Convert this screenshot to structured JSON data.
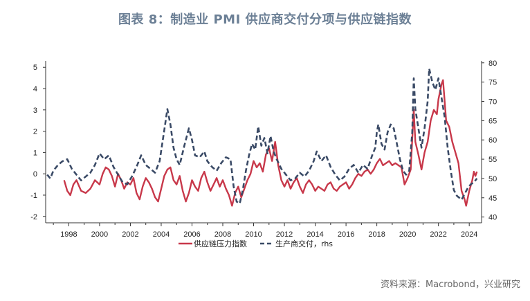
{
  "title": "图表 8：制造业 PMI 供应商交付分项与供应链指数",
  "source": "资料来源：Macrobond，兴业研究",
  "chart_data": {
    "type": "line",
    "title": "图表 8：制造业 PMI 供应商交付分项与供应链指数",
    "xlim": [
      1996.5,
      2024.8
    ],
    "x_ticks": [
      1998,
      2000,
      2002,
      2004,
      2006,
      2008,
      2010,
      2012,
      2014,
      2016,
      2018,
      2020,
      2022,
      2024
    ],
    "y_left": {
      "range": [
        -2.3,
        5.3
      ],
      "ticks": [
        -2,
        -1,
        0,
        1,
        2,
        3,
        4,
        5
      ]
    },
    "y_right": {
      "range": [
        38.5,
        80.5
      ],
      "ticks": [
        40,
        45,
        50,
        55,
        60,
        65,
        70,
        75,
        80
      ]
    },
    "legend_position": "bottom-center",
    "grid": false,
    "series": [
      {
        "name": "供应链压力指数",
        "axis": "left",
        "color": "#c8384a",
        "style": "solid",
        "points": [
          [
            1997.7,
            -0.3
          ],
          [
            1997.9,
            -0.8
          ],
          [
            1998.1,
            -1.0
          ],
          [
            1998.3,
            -0.5
          ],
          [
            1998.5,
            -0.3
          ],
          [
            1998.8,
            -0.8
          ],
          [
            1999.1,
            -0.9
          ],
          [
            1999.4,
            -0.7
          ],
          [
            1999.7,
            -0.3
          ],
          [
            2000.0,
            -0.5
          ],
          [
            2000.2,
            0.0
          ],
          [
            2000.4,
            0.3
          ],
          [
            2000.6,
            0.2
          ],
          [
            2000.8,
            -0.1
          ],
          [
            2001.0,
            -0.6
          ],
          [
            2001.2,
            0.0
          ],
          [
            2001.4,
            -0.3
          ],
          [
            2001.6,
            -0.7
          ],
          [
            2001.8,
            -0.4
          ],
          [
            2002.0,
            -0.5
          ],
          [
            2002.2,
            -0.2
          ],
          [
            2002.4,
            -0.9
          ],
          [
            2002.6,
            -1.2
          ],
          [
            2002.8,
            -0.6
          ],
          [
            2003.0,
            -0.2
          ],
          [
            2003.2,
            -0.4
          ],
          [
            2003.4,
            -0.7
          ],
          [
            2003.6,
            -1.1
          ],
          [
            2003.8,
            -1.3
          ],
          [
            2004.0,
            -0.7
          ],
          [
            2004.2,
            -0.1
          ],
          [
            2004.4,
            0.2
          ],
          [
            2004.6,
            0.3
          ],
          [
            2004.8,
            -0.3
          ],
          [
            2005.0,
            -0.5
          ],
          [
            2005.2,
            -0.1
          ],
          [
            2005.4,
            -0.8
          ],
          [
            2005.6,
            -1.3
          ],
          [
            2005.8,
            -0.9
          ],
          [
            2006.0,
            -0.3
          ],
          [
            2006.2,
            -0.6
          ],
          [
            2006.4,
            -0.8
          ],
          [
            2006.6,
            -0.2
          ],
          [
            2006.8,
            0.1
          ],
          [
            2007.0,
            -0.4
          ],
          [
            2007.2,
            -0.8
          ],
          [
            2007.4,
            -0.5
          ],
          [
            2007.6,
            -0.2
          ],
          [
            2007.8,
            -0.6
          ],
          [
            2008.0,
            -0.3
          ],
          [
            2008.2,
            -0.7
          ],
          [
            2008.4,
            -1.0
          ],
          [
            2008.6,
            -1.5
          ],
          [
            2008.8,
            -0.9
          ],
          [
            2009.0,
            -0.6
          ],
          [
            2009.2,
            -1.1
          ],
          [
            2009.4,
            -0.7
          ],
          [
            2009.6,
            -0.3
          ],
          [
            2009.8,
            0.0
          ],
          [
            2010.0,
            0.6
          ],
          [
            2010.2,
            0.3
          ],
          [
            2010.4,
            0.5
          ],
          [
            2010.6,
            0.1
          ],
          [
            2010.8,
            0.9
          ],
          [
            2011.0,
            1.2
          ],
          [
            2011.2,
            0.6
          ],
          [
            2011.4,
            1.5
          ],
          [
            2011.6,
            0.4
          ],
          [
            2011.8,
            -0.3
          ],
          [
            2012.0,
            -0.6
          ],
          [
            2012.2,
            -0.3
          ],
          [
            2012.4,
            -0.7
          ],
          [
            2012.6,
            -0.4
          ],
          [
            2012.8,
            -0.2
          ],
          [
            2013.0,
            -0.6
          ],
          [
            2013.2,
            -0.9
          ],
          [
            2013.4,
            -0.5
          ],
          [
            2013.6,
            -0.3
          ],
          [
            2013.8,
            -0.5
          ],
          [
            2014.0,
            -0.8
          ],
          [
            2014.2,
            -0.6
          ],
          [
            2014.4,
            -0.7
          ],
          [
            2014.6,
            -0.8
          ],
          [
            2014.8,
            -0.5
          ],
          [
            2015.0,
            -0.4
          ],
          [
            2015.2,
            -0.7
          ],
          [
            2015.4,
            -0.8
          ],
          [
            2015.6,
            -0.6
          ],
          [
            2015.8,
            -0.5
          ],
          [
            2016.0,
            -0.4
          ],
          [
            2016.2,
            -0.7
          ],
          [
            2016.4,
            -0.5
          ],
          [
            2016.6,
            -0.2
          ],
          [
            2016.8,
            0.0
          ],
          [
            2017.0,
            -0.1
          ],
          [
            2017.2,
            0.1
          ],
          [
            2017.4,
            0.2
          ],
          [
            2017.6,
            0.0
          ],
          [
            2017.8,
            0.2
          ],
          [
            2018.0,
            0.5
          ],
          [
            2018.2,
            0.7
          ],
          [
            2018.4,
            0.4
          ],
          [
            2018.6,
            0.5
          ],
          [
            2018.8,
            0.6
          ],
          [
            2019.0,
            0.4
          ],
          [
            2019.2,
            0.5
          ],
          [
            2019.4,
            0.4
          ],
          [
            2019.6,
            0.3
          ],
          [
            2019.8,
            -0.5
          ],
          [
            2020.0,
            -0.2
          ],
          [
            2020.2,
            0.2
          ],
          [
            2020.4,
            3.0
          ],
          [
            2020.5,
            1.5
          ],
          [
            2020.7,
            0.9
          ],
          [
            2020.9,
            0.2
          ],
          [
            2021.1,
            1.0
          ],
          [
            2021.3,
            1.5
          ],
          [
            2021.5,
            2.5
          ],
          [
            2021.7,
            3.0
          ],
          [
            2021.9,
            2.8
          ],
          [
            2022.0,
            3.5
          ],
          [
            2022.2,
            4.2
          ],
          [
            2022.3,
            4.4
          ],
          [
            2022.5,
            2.5
          ],
          [
            2022.7,
            2.2
          ],
          [
            2022.9,
            1.5
          ],
          [
            2023.1,
            1.0
          ],
          [
            2023.3,
            0.5
          ],
          [
            2023.5,
            -0.8
          ],
          [
            2023.7,
            -1.2
          ],
          [
            2023.8,
            -1.5
          ],
          [
            2024.0,
            -0.8
          ],
          [
            2024.2,
            -0.3
          ],
          [
            2024.3,
            0.1
          ],
          [
            2024.4,
            -0.1
          ],
          [
            2024.5,
            0.1
          ]
        ]
      },
      {
        "name": "生产商交付，rhs",
        "axis": "right",
        "color": "#3a4a66",
        "style": "dashed",
        "points": [
          [
            1996.6,
            51.0
          ],
          [
            1996.8,
            50.0
          ],
          [
            1997.0,
            52.0
          ],
          [
            1997.3,
            53.5
          ],
          [
            1997.6,
            54.5
          ],
          [
            1997.9,
            55.0
          ],
          [
            1998.2,
            52.5
          ],
          [
            1998.5,
            51.0
          ],
          [
            1998.8,
            49.5
          ],
          [
            1999.1,
            50.5
          ],
          [
            1999.4,
            51.5
          ],
          [
            1999.7,
            53.5
          ],
          [
            2000.0,
            56.5
          ],
          [
            2000.3,
            55.0
          ],
          [
            2000.6,
            56.0
          ],
          [
            2000.9,
            53.0
          ],
          [
            2001.2,
            51.0
          ],
          [
            2001.5,
            49.0
          ],
          [
            2001.8,
            48.5
          ],
          [
            2002.1,
            50.5
          ],
          [
            2002.4,
            53.0
          ],
          [
            2002.7,
            56.0
          ],
          [
            2003.0,
            53.5
          ],
          [
            2003.3,
            52.5
          ],
          [
            2003.6,
            51.5
          ],
          [
            2003.9,
            54.5
          ],
          [
            2004.2,
            62.5
          ],
          [
            2004.4,
            68.0
          ],
          [
            2004.6,
            64.0
          ],
          [
            2004.8,
            58.0
          ],
          [
            2005.0,
            55.0
          ],
          [
            2005.2,
            53.5
          ],
          [
            2005.5,
            58.5
          ],
          [
            2005.8,
            63.0
          ],
          [
            2006.0,
            60.0
          ],
          [
            2006.2,
            56.0
          ],
          [
            2006.5,
            55.5
          ],
          [
            2006.8,
            57.0
          ],
          [
            2007.0,
            54.5
          ],
          [
            2007.3,
            53.0
          ],
          [
            2007.6,
            52.0
          ],
          [
            2007.9,
            54.0
          ],
          [
            2008.2,
            55.5
          ],
          [
            2008.5,
            55.0
          ],
          [
            2008.7,
            48.0
          ],
          [
            2008.9,
            44.0
          ],
          [
            2009.1,
            43.5
          ],
          [
            2009.3,
            47.0
          ],
          [
            2009.5,
            52.0
          ],
          [
            2009.7,
            56.0
          ],
          [
            2009.9,
            59.0
          ],
          [
            2010.1,
            57.5
          ],
          [
            2010.3,
            63.5
          ],
          [
            2010.5,
            58.5
          ],
          [
            2010.7,
            60.5
          ],
          [
            2010.9,
            56.5
          ],
          [
            2011.1,
            61.0
          ],
          [
            2011.3,
            57.0
          ],
          [
            2011.5,
            55.0
          ],
          [
            2011.8,
            52.5
          ],
          [
            2012.1,
            51.0
          ],
          [
            2012.4,
            49.5
          ],
          [
            2012.7,
            50.0
          ],
          [
            2013.0,
            51.5
          ],
          [
            2013.3,
            50.5
          ],
          [
            2013.6,
            52.0
          ],
          [
            2013.9,
            54.5
          ],
          [
            2014.1,
            57.0
          ],
          [
            2014.4,
            54.5
          ],
          [
            2014.7,
            56.0
          ],
          [
            2015.0,
            53.0
          ],
          [
            2015.3,
            51.0
          ],
          [
            2015.6,
            49.5
          ],
          [
            2015.9,
            50.5
          ],
          [
            2016.2,
            52.5
          ],
          [
            2016.5,
            53.5
          ],
          [
            2016.8,
            51.5
          ],
          [
            2017.1,
            53.5
          ],
          [
            2017.4,
            52.5
          ],
          [
            2017.7,
            56.0
          ],
          [
            2017.9,
            58.0
          ],
          [
            2018.0,
            62.0
          ],
          [
            2018.1,
            64.0
          ],
          [
            2018.3,
            59.0
          ],
          [
            2018.5,
            57.5
          ],
          [
            2018.7,
            62.0
          ],
          [
            2018.9,
            64.0
          ],
          [
            2019.1,
            63.0
          ],
          [
            2019.3,
            59.0
          ],
          [
            2019.5,
            55.0
          ],
          [
            2019.7,
            52.0
          ],
          [
            2019.9,
            51.0
          ],
          [
            2020.1,
            52.0
          ],
          [
            2020.3,
            62.0
          ],
          [
            2020.4,
            76.0
          ],
          [
            2020.5,
            68.0
          ],
          [
            2020.7,
            63.0
          ],
          [
            2020.9,
            58.0
          ],
          [
            2021.1,
            63.0
          ],
          [
            2021.3,
            70.0
          ],
          [
            2021.4,
            78.5
          ],
          [
            2021.6,
            75.0
          ],
          [
            2021.8,
            73.0
          ],
          [
            2022.0,
            76.0
          ],
          [
            2022.2,
            71.0
          ],
          [
            2022.4,
            66.0
          ],
          [
            2022.6,
            58.0
          ],
          [
            2022.8,
            52.0
          ],
          [
            2023.0,
            47.0
          ],
          [
            2023.2,
            45.5
          ],
          [
            2023.5,
            44.5
          ],
          [
            2023.7,
            46.0
          ],
          [
            2023.9,
            47.5
          ],
          [
            2024.1,
            48.5
          ],
          [
            2024.3,
            49.0
          ],
          [
            2024.5,
            50.0
          ]
        ]
      }
    ]
  }
}
